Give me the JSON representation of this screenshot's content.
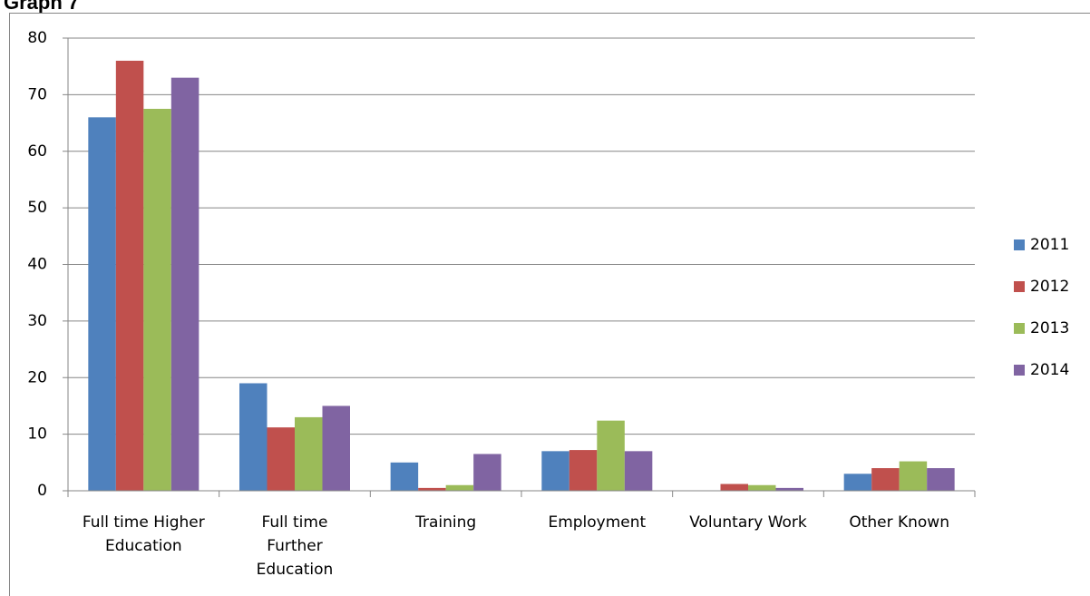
{
  "chart_data": {
    "type": "bar",
    "title": "Graph 7",
    "categories": [
      "Full time Higher\nEducation",
      "Full time\nFurther\nEducation",
      "Training",
      "Employment",
      "Voluntary Work",
      "Other Known"
    ],
    "series": [
      {
        "name": "2011",
        "color": "#4f81bd",
        "values": [
          66,
          19,
          5,
          7,
          0,
          3
        ]
      },
      {
        "name": "2012",
        "color": "#c0504d",
        "values": [
          76,
          11.2,
          0.5,
          7.2,
          1.2,
          4
        ]
      },
      {
        "name": "2013",
        "color": "#9bbb59",
        "values": [
          67.5,
          13,
          1,
          12.4,
          1,
          5.2
        ]
      },
      {
        "name": "2014",
        "color": "#8064a2",
        "values": [
          73,
          15,
          6.5,
          7,
          0.5,
          4
        ]
      }
    ],
    "ylim": [
      0,
      80
    ],
    "yticks": [
      0,
      10,
      20,
      30,
      40,
      50,
      60,
      70,
      80
    ],
    "grid": true,
    "legend": "right"
  }
}
